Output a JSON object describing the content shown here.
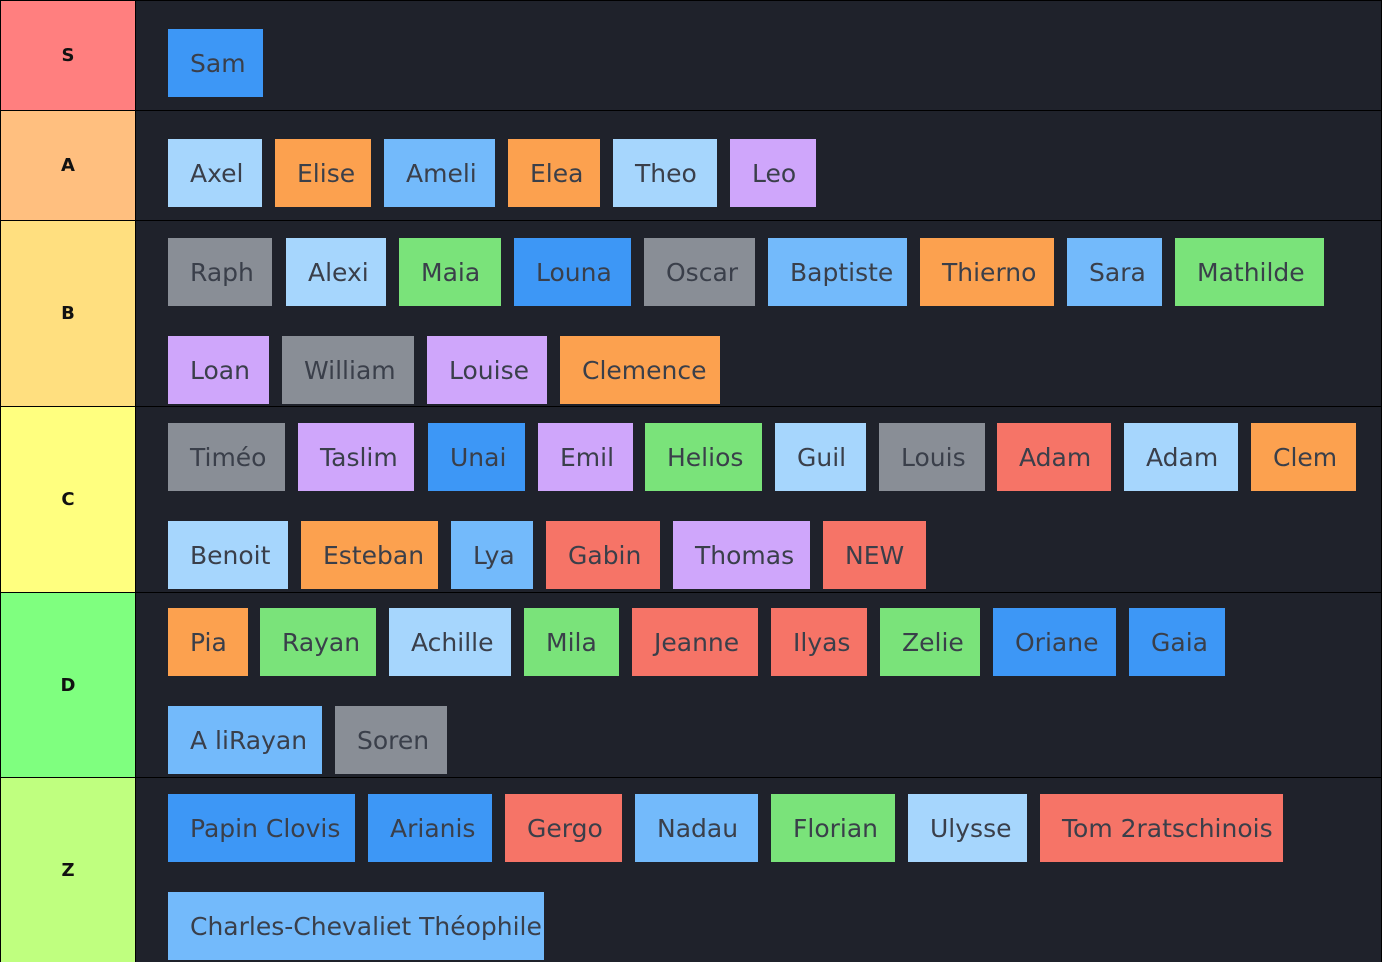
{
  "colors": {
    "blue": "#3d97f6",
    "skyblue": "#73bafb",
    "lightblue": "#a6d6fd",
    "orange": "#fca14f",
    "purple": "#cfa6fb",
    "gray": "#898e96",
    "green": "#7ae37a",
    "red": "#f67467"
  },
  "tiers": [
    {
      "label": "S",
      "color": "#ff7f7f",
      "items": [
        {
          "name": "Sam",
          "color": "blue"
        }
      ]
    },
    {
      "label": "A",
      "color": "#ffbf7f",
      "items": [
        {
          "name": "Axel",
          "color": "lightblue"
        },
        {
          "name": "Elise",
          "color": "orange"
        },
        {
          "name": "Ameli",
          "color": "skyblue"
        },
        {
          "name": "Elea",
          "color": "orange"
        },
        {
          "name": "Theo",
          "color": "lightblue"
        },
        {
          "name": "Leo",
          "color": "purple"
        }
      ]
    },
    {
      "label": "B",
      "color": "#ffdf7f",
      "items": [
        {
          "name": "Raph",
          "color": "gray"
        },
        {
          "name": "Alexi",
          "color": "lightblue"
        },
        {
          "name": "Maia",
          "color": "green"
        },
        {
          "name": "Louna",
          "color": "blue"
        },
        {
          "name": "Oscar",
          "color": "gray"
        },
        {
          "name": "Baptiste",
          "color": "skyblue"
        },
        {
          "name": "Thierno",
          "color": "orange"
        },
        {
          "name": "Sara",
          "color": "skyblue"
        },
        {
          "name": "Mathilde",
          "color": "green"
        },
        {
          "name": "Loan",
          "color": "purple"
        },
        {
          "name": "William",
          "color": "gray"
        },
        {
          "name": "Louise",
          "color": "purple"
        },
        {
          "name": "Clemence",
          "color": "orange"
        }
      ]
    },
    {
      "label": "C",
      "color": "#ffff7f",
      "items": [
        {
          "name": "Timéo",
          "color": "gray"
        },
        {
          "name": "Taslim",
          "color": "purple"
        },
        {
          "name": "Unai",
          "color": "blue"
        },
        {
          "name": "Emil",
          "color": "purple"
        },
        {
          "name": "Helios",
          "color": "green"
        },
        {
          "name": "Guil",
          "color": "lightblue"
        },
        {
          "name": "Louis",
          "color": "gray"
        },
        {
          "name": "Adam",
          "color": "red"
        },
        {
          "name": "Adam",
          "color": "lightblue"
        },
        {
          "name": "Clem",
          "color": "orange"
        },
        {
          "name": "Benoit",
          "color": "lightblue"
        },
        {
          "name": "Esteban",
          "color": "orange"
        },
        {
          "name": "Lya",
          "color": "skyblue"
        },
        {
          "name": "Gabin",
          "color": "red"
        },
        {
          "name": "Thomas",
          "color": "purple"
        },
        {
          "name": "NEW",
          "color": "red"
        }
      ]
    },
    {
      "label": "D",
      "color": "#7fff7f",
      "items": [
        {
          "name": "Pia",
          "color": "orange"
        },
        {
          "name": "Rayan",
          "color": "green"
        },
        {
          "name": "Achille",
          "color": "lightblue"
        },
        {
          "name": "Mila",
          "color": "green"
        },
        {
          "name": "Jeanne",
          "color": "red"
        },
        {
          "name": "Ilyas",
          "color": "red"
        },
        {
          "name": "Zelie",
          "color": "green"
        },
        {
          "name": "Oriane",
          "color": "blue"
        },
        {
          "name": "Gaia",
          "color": "blue"
        },
        {
          "name": "A liRayan",
          "color": "skyblue"
        },
        {
          "name": "Soren",
          "color": "gray"
        }
      ]
    },
    {
      "label": "Z",
      "color": "#bfff7f",
      "items": [
        {
          "name": "Papin Clovis",
          "color": "blue"
        },
        {
          "name": "Arianis",
          "color": "blue"
        },
        {
          "name": "Gergo",
          "color": "red"
        },
        {
          "name": "Nadau",
          "color": "skyblue"
        },
        {
          "name": "Florian",
          "color": "green"
        },
        {
          "name": "Ulysse",
          "color": "lightblue"
        },
        {
          "name": "Tom 2ratschinois",
          "color": "red"
        },
        {
          "name": "Charles-Chevaliet Théophile",
          "color": "skyblue"
        }
      ]
    }
  ]
}
